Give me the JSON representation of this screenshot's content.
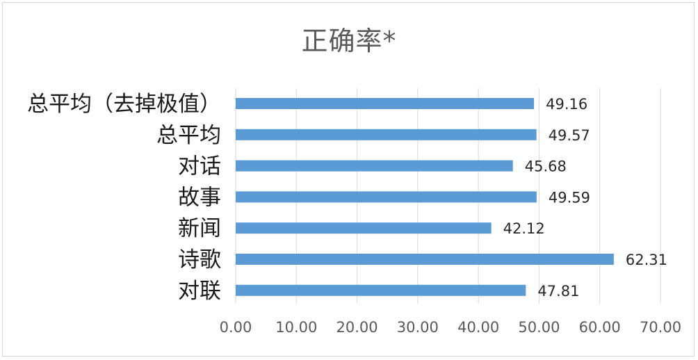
{
  "chart_data": {
    "type": "bar",
    "orientation": "horizontal",
    "title": "正确率*",
    "xlabel": "",
    "ylabel": "",
    "categories": [
      "总平均（去掉极值）",
      "总平均",
      "对话",
      "故事",
      "新闻",
      "诗歌",
      "对联"
    ],
    "values": [
      49.16,
      49.57,
      45.68,
      49.59,
      42.12,
      62.31,
      47.81
    ],
    "value_labels": [
      "49.16",
      "49.57",
      "45.68",
      "49.59",
      "42.12",
      "62.31",
      "47.81"
    ],
    "xlim": [
      0,
      70
    ],
    "x_ticks": [
      "0.00",
      "10.00",
      "20.00",
      "30.00",
      "40.00",
      "50.00",
      "60.00",
      "70.00"
    ],
    "grid": "vertical",
    "legend": "none",
    "bar_color": "#5b9bd5"
  }
}
